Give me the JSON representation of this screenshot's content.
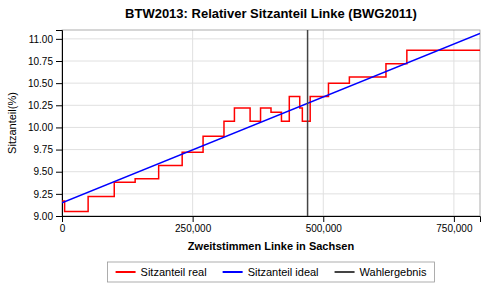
{
  "chart_data": {
    "type": "line",
    "title": "BTW2013: Relativer Sitzanteil Linke (BWG2011)",
    "x_label": "Zweitstimmen Linke in Sachsen",
    "y_label": "Sitzanteil(%)",
    "xlim": [
      0,
      800000
    ],
    "ylim": [
      9.0,
      11.1
    ],
    "xticks": [
      0,
      {
        "value": 250000,
        "label": "250,000"
      },
      {
        "value": 500000,
        "label": "500,000"
      },
      {
        "value": 750000,
        "label": "750,000"
      }
    ],
    "yticks": [
      {
        "value": 9.0,
        "label": "9.00"
      },
      9.25,
      {
        "value": 9.5,
        "label": "9.50"
      },
      9.75,
      {
        "value": 10.0,
        "label": "10.00"
      },
      10.25,
      {
        "value": 10.5,
        "label": "10.50"
      },
      10.75,
      {
        "value": 11.0,
        "label": "11.00"
      }
    ],
    "grid": true,
    "legend": "bottom",
    "series": [
      {
        "name": "Sitzanteil real",
        "type": "line",
        "color": "red",
        "x": [
          0,
          5000,
          5000,
          50000,
          50000,
          100000,
          100000,
          140000,
          140000,
          185000,
          185000,
          230000,
          230000,
          270000,
          270000,
          310000,
          310000,
          330000,
          330000,
          360000,
          360000,
          380000,
          380000,
          400000,
          400000,
          420000,
          420000,
          435000,
          435000,
          455000,
          455000,
          460000,
          460000,
          475000,
          475000,
          510000,
          510000,
          550000,
          550000,
          585000,
          585000,
          620000,
          620000,
          660000,
          660000,
          710000,
          710000,
          760000,
          760000,
          800000
        ],
        "values": [
          9.17,
          9.17,
          9.05,
          9.05,
          9.22,
          9.22,
          9.38,
          9.38,
          9.42,
          9.42,
          9.57,
          9.57,
          9.72,
          9.72,
          9.9,
          9.9,
          10.07,
          10.07,
          10.22,
          10.22,
          10.07,
          10.07,
          10.22,
          10.22,
          10.17,
          10.17,
          10.07,
          10.07,
          10.35,
          10.35,
          10.22,
          10.22,
          10.07,
          10.07,
          10.35,
          10.35,
          10.5,
          10.5,
          10.57,
          10.57,
          10.57,
          10.57,
          10.72,
          10.72,
          10.87,
          10.87,
          10.87,
          10.87,
          10.87,
          10.87
        ]
      },
      {
        "name": "Sitzanteil ideal",
        "type": "line",
        "color": "blue",
        "x": [
          0,
          800000
        ],
        "values": [
          9.15,
          11.06
        ]
      },
      {
        "name": "Wahlergebnis",
        "type": "vline",
        "color": "#444444",
        "x": [
          470000
        ]
      }
    ]
  }
}
